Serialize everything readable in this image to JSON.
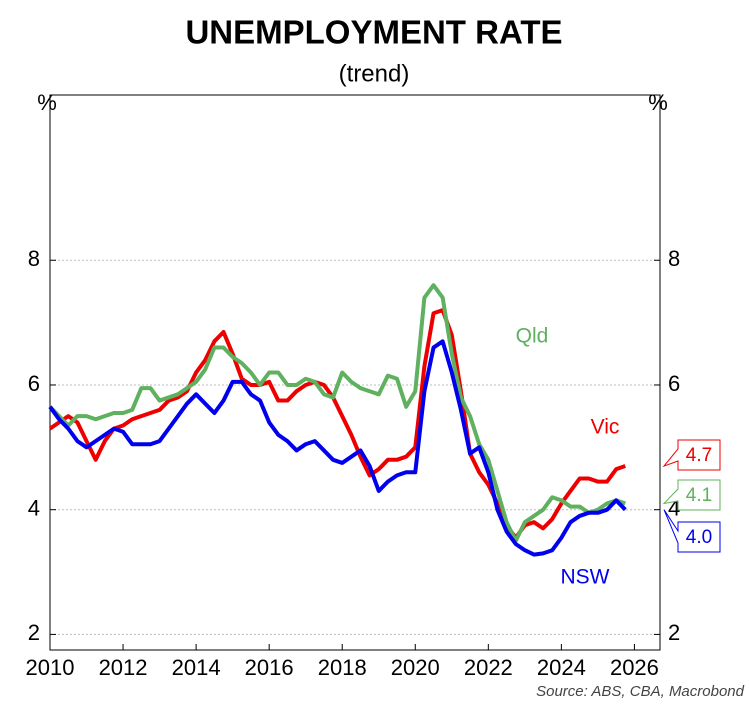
{
  "chart_data": {
    "type": "line",
    "title": "UNEMPLOYMENT RATE",
    "subtitle": "(trend)",
    "y_unit_left": "%",
    "y_unit_right": "%",
    "source": "Source: ABS, CBA, Macrobond",
    "x": [
      2010,
      2010.25,
      2010.5,
      2010.75,
      2011,
      2011.25,
      2011.5,
      2011.75,
      2012,
      2012.25,
      2012.5,
      2012.75,
      2013,
      2013.25,
      2013.5,
      2013.75,
      2014,
      2014.25,
      2014.5,
      2014.75,
      2015,
      2015.25,
      2015.5,
      2015.75,
      2016,
      2016.25,
      2016.5,
      2016.75,
      2017,
      2017.25,
      2017.5,
      2017.75,
      2018,
      2018.25,
      2018.5,
      2018.75,
      2019,
      2019.25,
      2019.5,
      2019.75,
      2020,
      2020.25,
      2020.5,
      2020.75,
      2021,
      2021.25,
      2021.5,
      2021.75,
      2022,
      2022.25,
      2022.5,
      2022.75,
      2023,
      2023.25,
      2023.5,
      2023.75,
      2024,
      2024.25,
      2024.5,
      2024.75,
      2025,
      2025.25,
      2025.5,
      2025.75
    ],
    "series": [
      {
        "name": "Vic",
        "color": "#ee0000",
        "end_label": "4.7",
        "values": [
          5.3,
          5.4,
          5.5,
          5.4,
          5.1,
          4.8,
          5.1,
          5.3,
          5.35,
          5.45,
          5.5,
          5.55,
          5.6,
          5.75,
          5.8,
          5.9,
          6.2,
          6.4,
          6.7,
          6.85,
          6.5,
          6.1,
          6.0,
          6.0,
          6.05,
          5.75,
          5.75,
          5.9,
          6.0,
          6.05,
          6.0,
          5.8,
          5.5,
          5.2,
          4.85,
          4.55,
          4.65,
          4.8,
          4.8,
          4.85,
          5.0,
          6.3,
          7.15,
          7.2,
          6.8,
          5.9,
          4.9,
          4.6,
          4.4,
          4.1,
          3.75,
          3.55,
          3.75,
          3.8,
          3.7,
          3.85,
          4.1,
          4.3,
          4.5,
          4.5,
          4.45,
          4.45,
          4.65,
          4.7
        ]
      },
      {
        "name": "Qld",
        "color": "#5fb05f",
        "end_label": "4.1",
        "values": [
          5.65,
          5.5,
          5.35,
          5.5,
          5.5,
          5.45,
          5.5,
          5.55,
          5.55,
          5.6,
          5.95,
          5.95,
          5.75,
          5.8,
          5.85,
          5.95,
          6.05,
          6.25,
          6.6,
          6.6,
          6.45,
          6.35,
          6.2,
          6.0,
          6.2,
          6.2,
          6.0,
          6.0,
          6.1,
          6.05,
          5.85,
          5.8,
          6.2,
          6.05,
          5.95,
          5.9,
          5.85,
          6.15,
          6.1,
          5.65,
          5.9,
          7.4,
          7.6,
          7.4,
          6.5,
          5.8,
          5.5,
          5.05,
          4.8,
          4.3,
          3.8,
          3.5,
          3.8,
          3.9,
          4.0,
          4.2,
          4.15,
          4.05,
          4.05,
          3.95,
          4.0,
          4.1,
          4.15,
          4.1
        ]
      },
      {
        "name": "NSW",
        "color": "#0000ee",
        "end_label": "4.0",
        "values": [
          5.65,
          5.45,
          5.3,
          5.1,
          5.0,
          5.1,
          5.2,
          5.3,
          5.25,
          5.05,
          5.05,
          5.05,
          5.1,
          5.3,
          5.5,
          5.7,
          5.85,
          5.7,
          5.55,
          5.75,
          6.05,
          6.05,
          5.85,
          5.75,
          5.4,
          5.2,
          5.1,
          4.95,
          5.05,
          5.1,
          4.95,
          4.8,
          4.75,
          4.85,
          4.95,
          4.7,
          4.3,
          4.45,
          4.55,
          4.6,
          4.6,
          5.9,
          6.6,
          6.7,
          6.2,
          5.6,
          4.9,
          5.0,
          4.6,
          4.0,
          3.65,
          3.45,
          3.35,
          3.28,
          3.3,
          3.35,
          3.55,
          3.8,
          3.9,
          3.95,
          3.95,
          4.0,
          4.15,
          4.0
        ]
      }
    ],
    "xlim": [
      2010,
      2026.7
    ],
    "xticks": [
      2010,
      2012,
      2014,
      2016,
      2018,
      2020,
      2022,
      2024,
      2026
    ],
    "ylim": [
      1.75,
      10.65
    ],
    "yticks": [
      2,
      4,
      6,
      8
    ],
    "y2lim": [
      1.75,
      10.65
    ],
    "y2ticks": [
      2,
      4,
      6,
      8
    ],
    "grid": true
  }
}
